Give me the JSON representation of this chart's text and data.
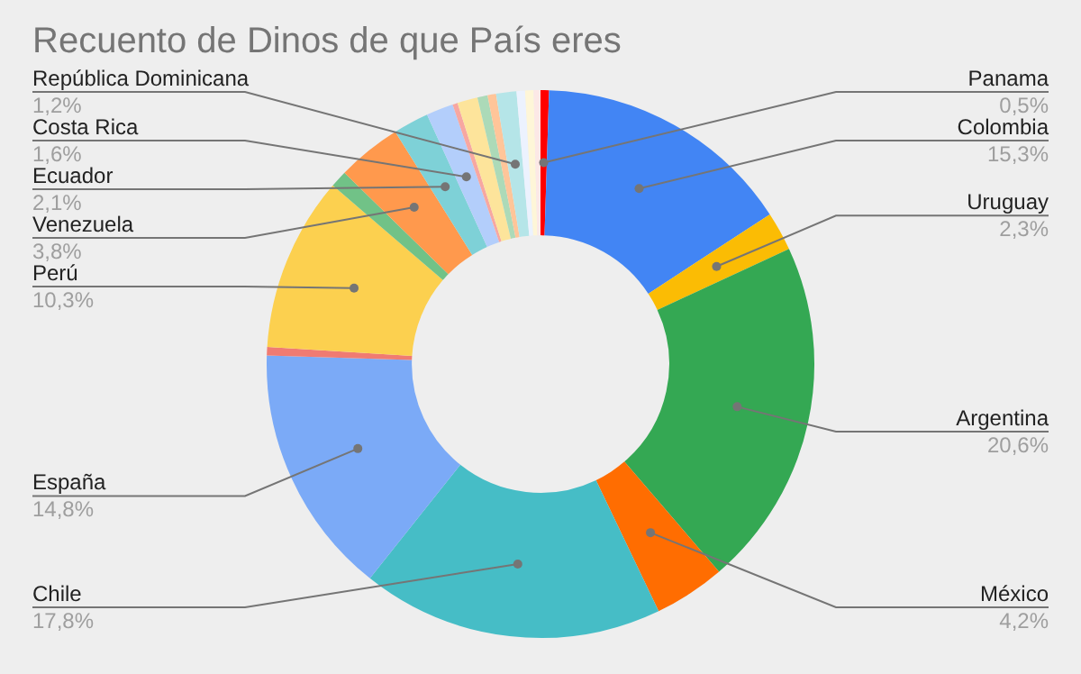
{
  "chart_data": {
    "type": "donut",
    "title": "Recuento de Dinos de que País eres",
    "categories": [
      "Panama",
      "Colombia",
      "Uruguay",
      "Argentina",
      "México",
      "Chile",
      "España",
      null,
      "Perú",
      null,
      "Venezuela",
      "Ecuador",
      "Costa Rica",
      null,
      null,
      null,
      null,
      "República Dominicana",
      null,
      null,
      null
    ],
    "values": [
      0.5,
      15.3,
      2.3,
      20.6,
      4.2,
      17.8,
      14.8,
      0.5,
      10.3,
      1.0,
      3.8,
      2.1,
      1.6,
      0.3,
      1.2,
      0.6,
      0.5,
      1.2,
      0.5,
      0.5,
      0.4
    ],
    "colors": [
      "#ff0000",
      "#4285f4",
      "#fbbc04",
      "#34a853",
      "#ff6d01",
      "#46bdc6",
      "#7baaf7",
      "#f07b72",
      "#fcd04f",
      "#71c287",
      "#ff994d",
      "#7ed1d7",
      "#b3cefb",
      "#f7a7a1",
      "#fde49b",
      "#acdab8",
      "#ffc599",
      "#b5e5e8",
      "#ecf2fe",
      "#fef6d8",
      "#fce8e6"
    ],
    "value_labels": [
      "0,5%",
      "15,3%",
      "2,3%",
      "20,6%",
      "4,2%",
      "17,8%",
      "14,8%",
      null,
      "10,3%",
      null,
      "3,8%",
      "2,1%",
      "1,6%",
      null,
      null,
      null,
      null,
      "1,2%",
      null,
      null,
      null
    ],
    "legend": false
  }
}
